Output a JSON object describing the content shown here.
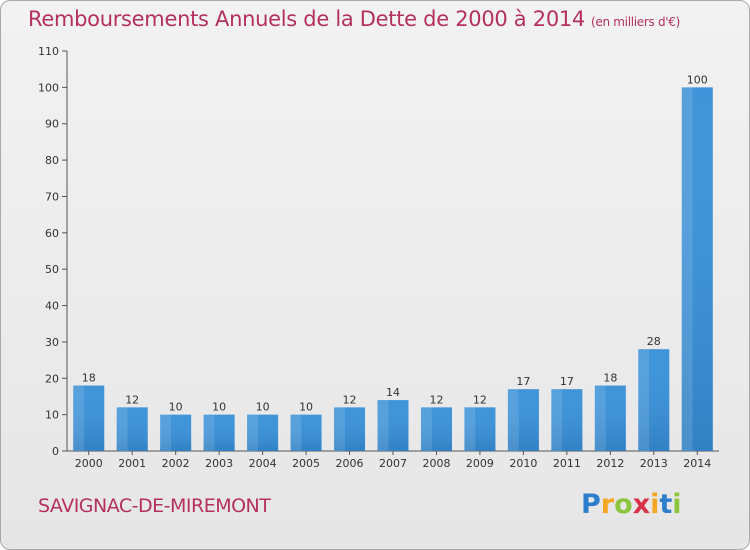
{
  "chart_data": {
    "type": "bar",
    "title": "Remboursements Annuels de la Dette de 2000 à 2014",
    "unit_note": "(en milliers d'€)",
    "categories": [
      "2000",
      "2001",
      "2002",
      "2003",
      "2004",
      "2005",
      "2006",
      "2007",
      "2008",
      "2009",
      "2010",
      "2011",
      "2012",
      "2013",
      "2014"
    ],
    "values": [
      18,
      12,
      10,
      10,
      10,
      10,
      12,
      14,
      12,
      12,
      17,
      17,
      18,
      28,
      100
    ],
    "ylim": [
      0,
      110
    ],
    "yticks": [
      0,
      10,
      20,
      30,
      40,
      50,
      60,
      70,
      80,
      90,
      100,
      110
    ],
    "xlabel": "",
    "ylabel": "",
    "grid": false,
    "bar_color": "#3a8fd6"
  },
  "footer": {
    "commune": "SAVIGNAC-DE-MIREMONT",
    "brand_letters": [
      "P",
      "r",
      "o",
      "x",
      "i",
      "t",
      "i"
    ]
  },
  "colors": {
    "title": "#b5315d",
    "bar_top": "#5aaaea",
    "bar_bottom": "#2a75b8"
  }
}
